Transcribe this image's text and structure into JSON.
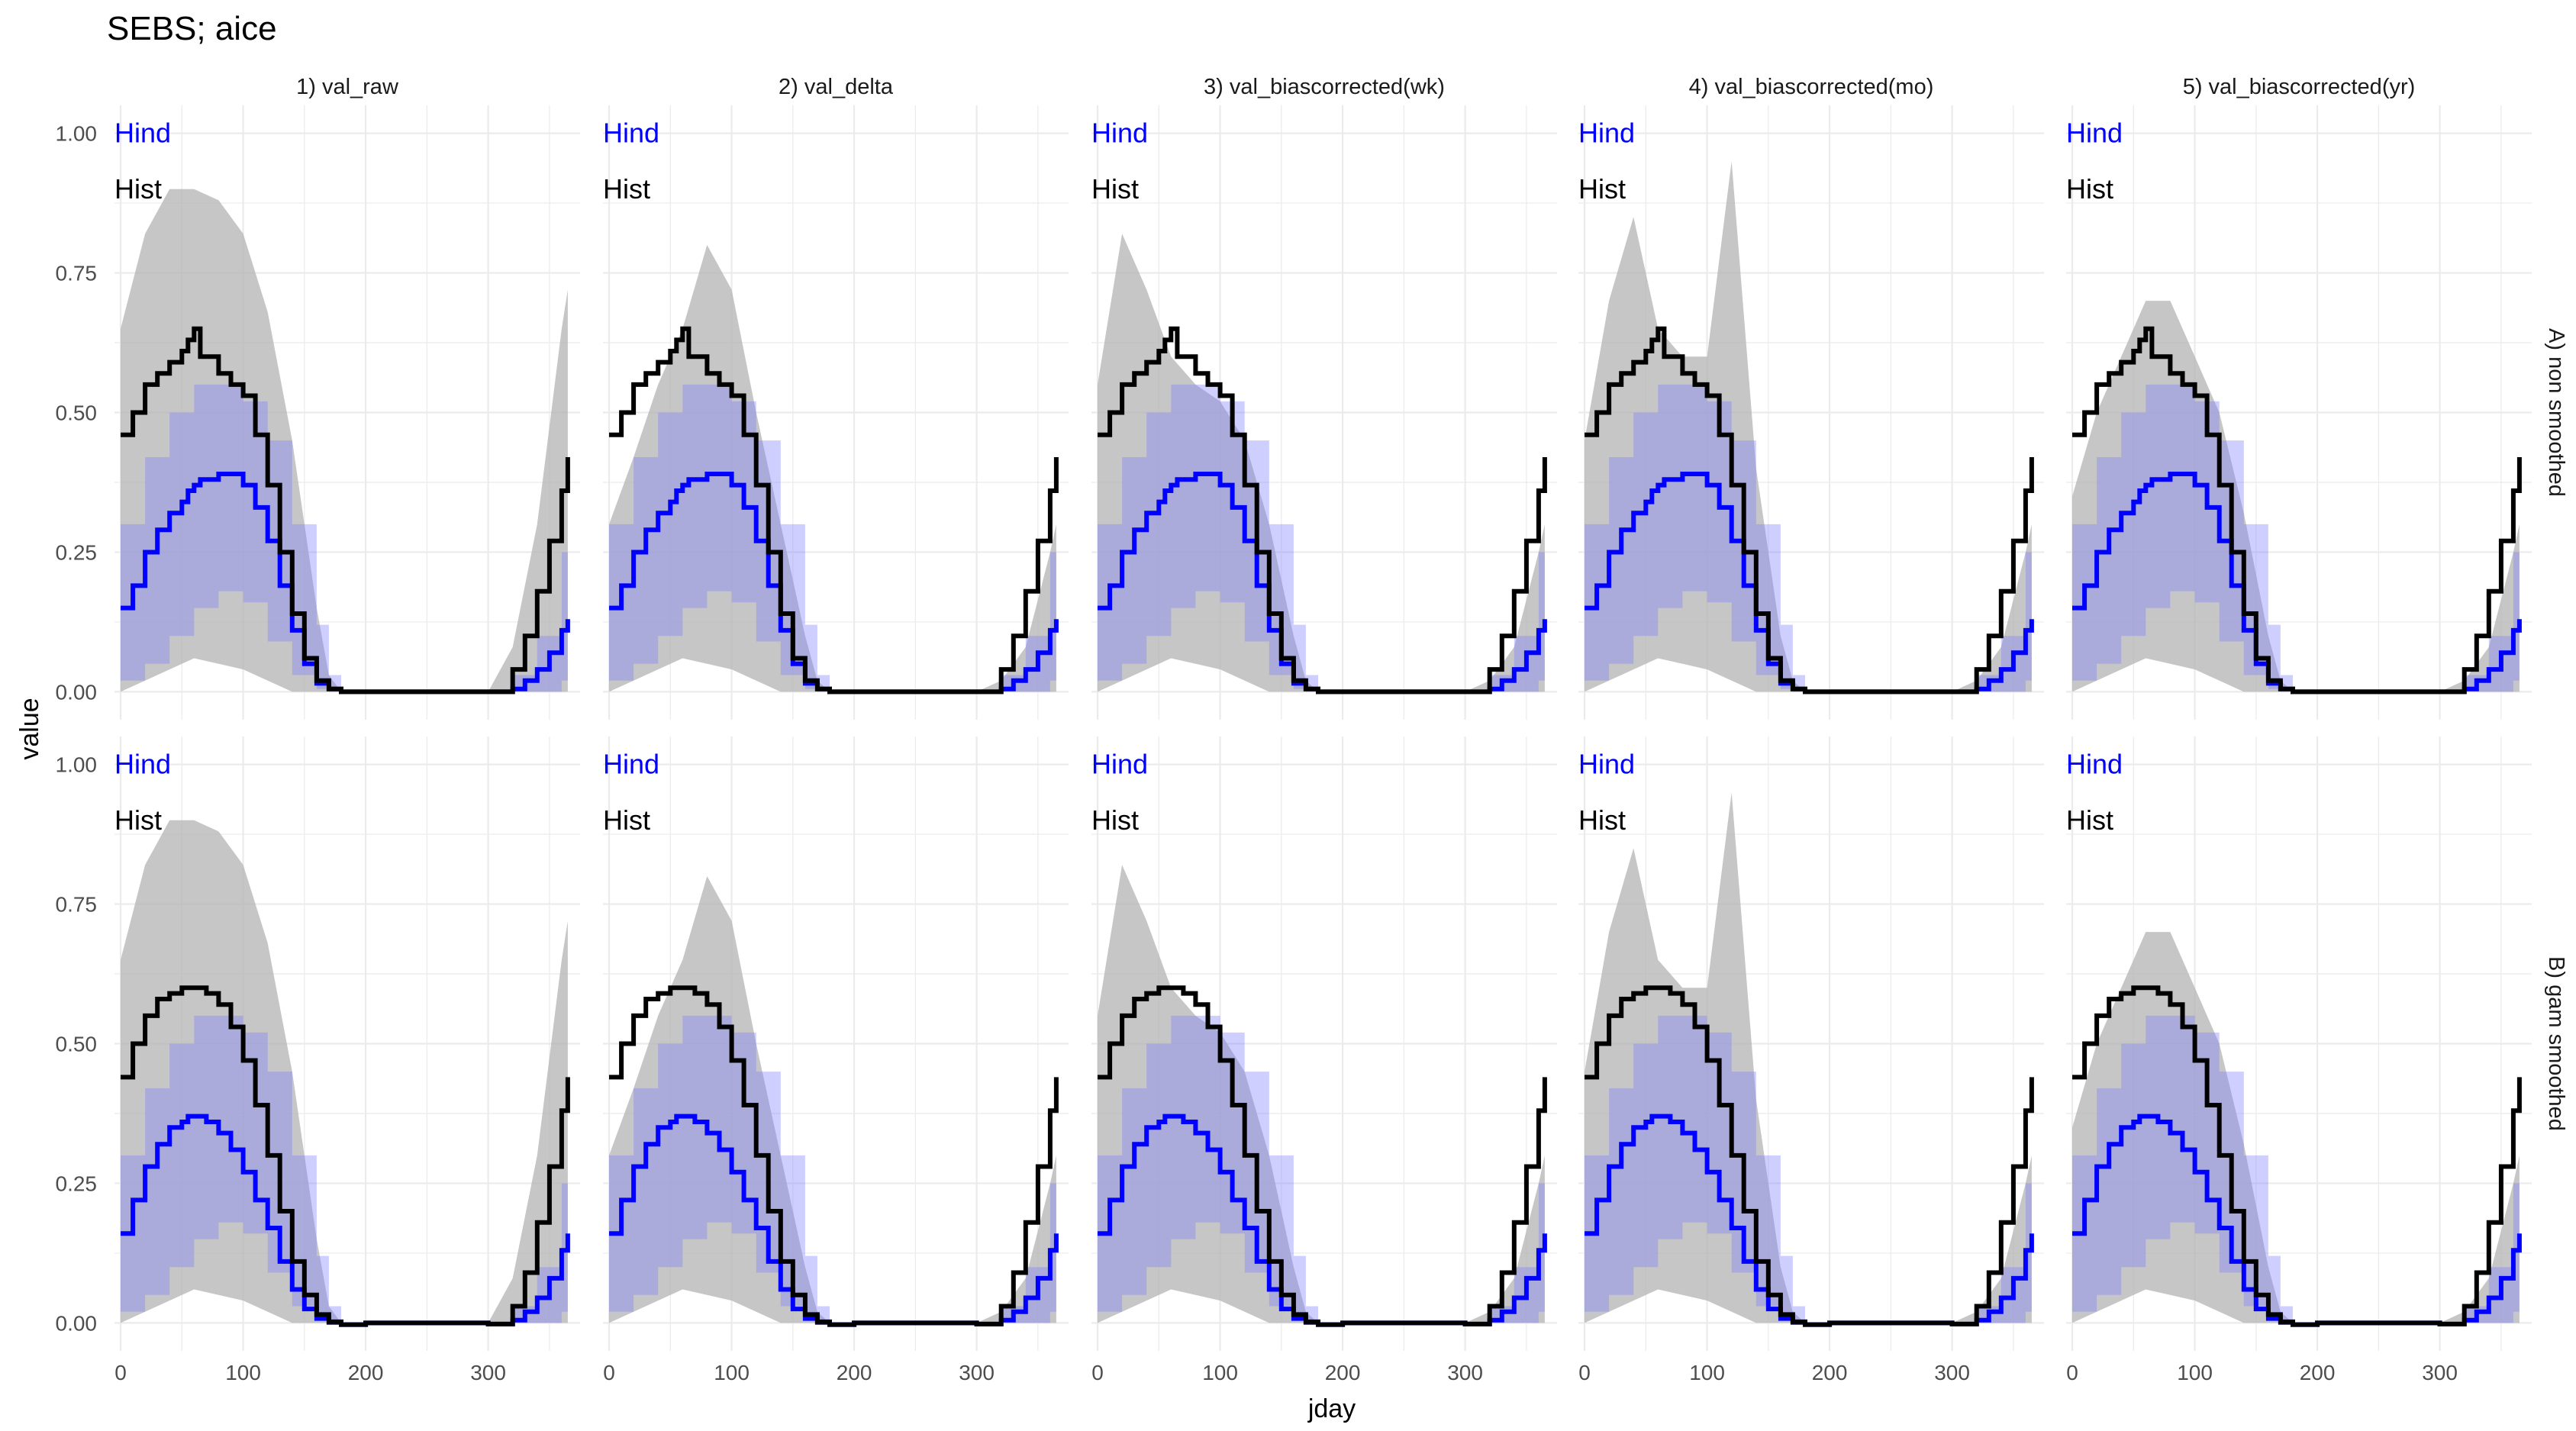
{
  "chart_data": {
    "type": "line",
    "title": "SEBS; aice",
    "xlabel": "jday",
    "ylabel": "value",
    "xlim": [
      -5,
      375
    ],
    "ylim": [
      -0.05,
      1.05
    ],
    "x_ticks": [
      0,
      100,
      200,
      300
    ],
    "x_tick_labels": [
      "0",
      "100",
      "200",
      "300"
    ],
    "y_ticks": [
      0,
      0.25,
      0.5,
      0.75,
      1.0
    ],
    "y_tick_labels": [
      "0.00",
      "0.25",
      "0.50",
      "0.75",
      "1.00"
    ],
    "grid": true,
    "facet_columns": [
      "1) val_raw",
      "2) val_delta",
      "3) val_biascorrected(wk)",
      "4) val_biascorrected(mo)",
      "5) val_biascorrected(yr)"
    ],
    "facet_rows": [
      "A) non smoothed",
      "B) gam smoothed"
    ],
    "annotations": [
      {
        "label": "Hind",
        "x": 0,
        "y": 1.0,
        "color": "#0000ff"
      },
      {
        "label": "Hist",
        "x": 0,
        "y": 0.9,
        "color": "#000000"
      }
    ],
    "series": [
      {
        "name": "Hind",
        "kind": "line",
        "color": "#0000ff",
        "x": [
          0,
          10,
          20,
          30,
          40,
          50,
          55,
          60,
          65,
          70,
          80,
          90,
          100,
          110,
          120,
          130,
          140,
          150,
          160,
          170,
          180,
          200,
          250,
          300,
          320,
          330,
          340,
          350,
          360,
          365
        ],
        "y_non_smoothed": [
          0.15,
          0.19,
          0.25,
          0.29,
          0.32,
          0.34,
          0.36,
          0.37,
          0.38,
          0.38,
          0.39,
          0.39,
          0.37,
          0.33,
          0.27,
          0.19,
          0.11,
          0.05,
          0.015,
          0.005,
          0,
          0,
          0,
          0,
          0.005,
          0.02,
          0.04,
          0.07,
          0.11,
          0.13
        ],
        "y_gam_smoothed": [
          0.16,
          0.22,
          0.28,
          0.32,
          0.35,
          0.36,
          0.37,
          0.37,
          0.37,
          0.36,
          0.34,
          0.31,
          0.27,
          0.22,
          0.17,
          0.11,
          0.06,
          0.025,
          0.008,
          0.001,
          -0.003,
          0,
          0,
          -0.002,
          0.005,
          0.02,
          0.045,
          0.08,
          0.13,
          0.16
        ]
      },
      {
        "name": "Hist",
        "kind": "line",
        "color": "#000000",
        "x": [
          0,
          10,
          20,
          30,
          40,
          50,
          55,
          60,
          65,
          70,
          80,
          90,
          100,
          110,
          120,
          130,
          140,
          150,
          160,
          170,
          180,
          200,
          250,
          300,
          320,
          330,
          340,
          350,
          360,
          365
        ],
        "y_non_smoothed": [
          0.46,
          0.5,
          0.55,
          0.57,
          0.59,
          0.61,
          0.63,
          0.65,
          0.6,
          0.6,
          0.57,
          0.55,
          0.53,
          0.46,
          0.37,
          0.25,
          0.14,
          0.06,
          0.02,
          0.005,
          0,
          0,
          0,
          0,
          0.04,
          0.1,
          0.18,
          0.27,
          0.36,
          0.42
        ],
        "y_gam_smoothed": [
          0.44,
          0.5,
          0.55,
          0.58,
          0.59,
          0.6,
          0.6,
          0.6,
          0.6,
          0.59,
          0.57,
          0.53,
          0.47,
          0.39,
          0.3,
          0.2,
          0.11,
          0.05,
          0.015,
          0.002,
          -0.003,
          0,
          0,
          -0.002,
          0.03,
          0.09,
          0.18,
          0.28,
          0.38,
          0.44
        ]
      },
      {
        "name": "Hind band",
        "kind": "band",
        "color": "#ccccff",
        "x": [
          0,
          20,
          40,
          60,
          80,
          100,
          120,
          140,
          160,
          170,
          180,
          300,
          320,
          340,
          360,
          365
        ],
        "lower": [
          0.02,
          0.05,
          0.1,
          0.15,
          0.18,
          0.16,
          0.09,
          0.03,
          0.005,
          0,
          0,
          0,
          0,
          0,
          0.02,
          0.04
        ],
        "upper": [
          0.3,
          0.42,
          0.5,
          0.55,
          0.55,
          0.52,
          0.45,
          0.3,
          0.12,
          0.03,
          0,
          0,
          0.03,
          0.1,
          0.25,
          0.3
        ]
      },
      {
        "name": "projections",
        "kind": "envelope",
        "color": "#b3b3b3",
        "x": [
          0,
          20,
          40,
          60,
          80,
          100,
          120,
          140,
          160,
          170,
          180,
          300,
          320,
          340,
          360,
          365
        ],
        "lower": [
          0.0,
          0.02,
          0.04,
          0.06,
          0.05,
          0.04,
          0.02,
          0.0,
          0,
          0,
          0,
          0,
          0,
          0,
          0,
          0
        ],
        "upper_raw": [
          0.65,
          0.82,
          0.9,
          0.9,
          0.88,
          0.82,
          0.68,
          0.45,
          0.15,
          0.03,
          0,
          0,
          0.08,
          0.3,
          0.65,
          0.72
        ],
        "upper_delta": [
          0.3,
          0.42,
          0.55,
          0.65,
          0.8,
          0.72,
          0.5,
          0.3,
          0.1,
          0.02,
          0,
          0,
          0.02,
          0.08,
          0.25,
          0.3
        ],
        "upper_wk": [
          0.55,
          0.82,
          0.72,
          0.6,
          0.55,
          0.52,
          0.45,
          0.3,
          0.1,
          0.02,
          0,
          0,
          0.02,
          0.08,
          0.25,
          0.3
        ],
        "upper_mo": [
          0.45,
          0.7,
          0.85,
          0.65,
          0.6,
          0.6,
          0.95,
          0.4,
          0.1,
          0.02,
          0,
          0,
          0.02,
          0.08,
          0.25,
          0.3
        ],
        "upper_yr": [
          0.35,
          0.5,
          0.6,
          0.7,
          0.7,
          0.6,
          0.5,
          0.32,
          0.1,
          0.02,
          0,
          0,
          0.02,
          0.08,
          0.25,
          0.3
        ]
      }
    ]
  }
}
